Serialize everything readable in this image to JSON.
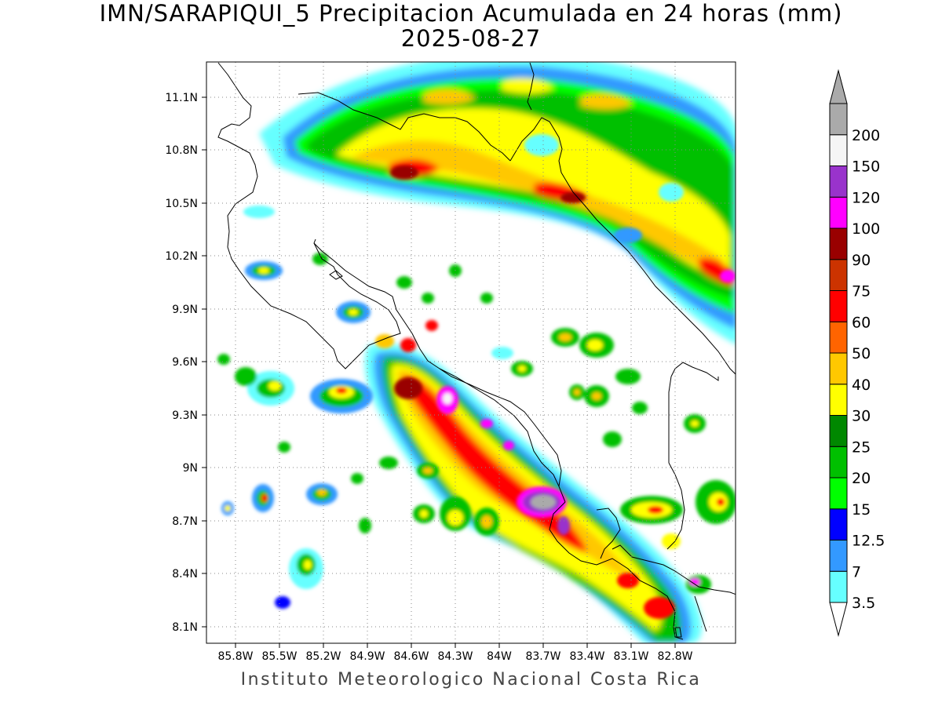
{
  "title": {
    "line1": "IMN/SARAPIQUI_5 Precipitacion Acumulada en 24 horas (mm)",
    "line2": "2025-08-27"
  },
  "footer": "Instituto Meteorologico Nacional Costa Rica",
  "map": {
    "lat_ticks": [
      "11.1N",
      "10.8N",
      "10.5N",
      "10.2N",
      "9.9N",
      "9.6N",
      "9.3N",
      "9N",
      "8.7N",
      "8.4N",
      "8.1N"
    ],
    "lon_ticks": [
      "85.8W",
      "85.5W",
      "85.2W",
      "84.9W",
      "84.6W",
      "84.3W",
      "84W",
      "83.7W",
      "83.4W",
      "83.1W",
      "82.8W"
    ],
    "grid": "dotted"
  },
  "colorbar": {
    "labels": [
      "3.5",
      "7",
      "12.5",
      "15",
      "20",
      "25",
      "30",
      "40",
      "50",
      "60",
      "75",
      "90",
      "100",
      "120",
      "150",
      "200"
    ],
    "colors": [
      "#66ffff",
      "#3399ff",
      "#0000ff",
      "#00ff00",
      "#00c000",
      "#008800",
      "#ffff00",
      "#ffc800",
      "#ff6400",
      "#ff0000",
      "#cc3300",
      "#990000",
      "#ff00ff",
      "#9933cc",
      "#f5f5f5",
      "#aaaaaa"
    ],
    "under_color": "#ffffff",
    "over_color": "#aaaaaa"
  }
}
